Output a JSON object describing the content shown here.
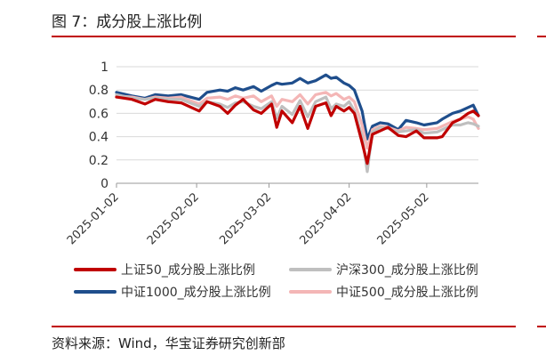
{
  "figure": {
    "title": "图 7：成分股上涨比例",
    "source": "资料来源：Wind，华宝证券研究创新部"
  },
  "colors": {
    "rule": "#c00000",
    "sz50": "#c00000",
    "hs300": "#bfbfbf",
    "zz1000": "#1f4e8c",
    "zz500": "#f4b6b6"
  },
  "chart_data": {
    "type": "line",
    "title": "",
    "xlabel": "",
    "ylabel": "",
    "ylim": [
      0,
      1
    ],
    "yticks": [
      0,
      0.2,
      0.4,
      0.6,
      0.8,
      1
    ],
    "ytick_labels": [
      "0",
      "0.2",
      "0.4",
      "0.6",
      "0.8",
      "1"
    ],
    "xlim": [
      "2025-01-02",
      "2025-05-22"
    ],
    "xticks": [
      "2025-01-02",
      "2025-02-02",
      "2025-03-02",
      "2025-04-02",
      "2025-05-02"
    ],
    "grid": "horizontal",
    "legend_position": "bottom",
    "series": [
      {
        "key": "sz50",
        "name": "上证50_成分股上涨比例",
        "points": [
          [
            "2025-01-02",
            0.74
          ],
          [
            "2025-01-08",
            0.72
          ],
          [
            "2025-01-13",
            0.68
          ],
          [
            "2025-01-17",
            0.72
          ],
          [
            "2025-01-22",
            0.7
          ],
          [
            "2025-01-27",
            0.69
          ],
          [
            "2025-02-03",
            0.62
          ],
          [
            "2025-02-06",
            0.7
          ],
          [
            "2025-02-11",
            0.66
          ],
          [
            "2025-02-14",
            0.6
          ],
          [
            "2025-02-17",
            0.67
          ],
          [
            "2025-02-20",
            0.72
          ],
          [
            "2025-02-24",
            0.63
          ],
          [
            "2025-02-27",
            0.6
          ],
          [
            "2025-03-03",
            0.68
          ],
          [
            "2025-03-05",
            0.48
          ],
          [
            "2025-03-07",
            0.62
          ],
          [
            "2025-03-11",
            0.52
          ],
          [
            "2025-03-14",
            0.66
          ],
          [
            "2025-03-17",
            0.47
          ],
          [
            "2025-03-20",
            0.66
          ],
          [
            "2025-03-24",
            0.69
          ],
          [
            "2025-03-26",
            0.58
          ],
          [
            "2025-03-28",
            0.66
          ],
          [
            "2025-03-31",
            0.62
          ],
          [
            "2025-04-02",
            0.65
          ],
          [
            "2025-04-04",
            0.6
          ],
          [
            "2025-04-07",
            0.35
          ],
          [
            "2025-04-09",
            0.17
          ],
          [
            "2025-04-11",
            0.42
          ],
          [
            "2025-04-14",
            0.45
          ],
          [
            "2025-04-17",
            0.48
          ],
          [
            "2025-04-21",
            0.41
          ],
          [
            "2025-04-24",
            0.4
          ],
          [
            "2025-04-28",
            0.45
          ],
          [
            "2025-05-01",
            0.39
          ],
          [
            "2025-05-06",
            0.39
          ],
          [
            "2025-05-08",
            0.4
          ],
          [
            "2025-05-12",
            0.52
          ],
          [
            "2025-05-15",
            0.55
          ],
          [
            "2025-05-18",
            0.6
          ],
          [
            "2025-05-20",
            0.62
          ],
          [
            "2025-05-22",
            0.58
          ]
        ]
      },
      {
        "key": "hs300",
        "name": "沪深300_成分股上涨比例",
        "points": [
          [
            "2025-01-02",
            0.76
          ],
          [
            "2025-01-08",
            0.73
          ],
          [
            "2025-01-13",
            0.72
          ],
          [
            "2025-01-17",
            0.73
          ],
          [
            "2025-01-22",
            0.72
          ],
          [
            "2025-01-27",
            0.72
          ],
          [
            "2025-02-03",
            0.66
          ],
          [
            "2025-02-06",
            0.7
          ],
          [
            "2025-02-11",
            0.68
          ],
          [
            "2025-02-14",
            0.65
          ],
          [
            "2025-02-17",
            0.69
          ],
          [
            "2025-02-20",
            0.7
          ],
          [
            "2025-02-24",
            0.66
          ],
          [
            "2025-02-27",
            0.64
          ],
          [
            "2025-03-03",
            0.7
          ],
          [
            "2025-03-05",
            0.56
          ],
          [
            "2025-03-07",
            0.66
          ],
          [
            "2025-03-11",
            0.59
          ],
          [
            "2025-03-14",
            0.71
          ],
          [
            "2025-03-17",
            0.57
          ],
          [
            "2025-03-20",
            0.7
          ],
          [
            "2025-03-24",
            0.74
          ],
          [
            "2025-03-26",
            0.64
          ],
          [
            "2025-03-28",
            0.68
          ],
          [
            "2025-03-31",
            0.66
          ],
          [
            "2025-04-02",
            0.7
          ],
          [
            "2025-04-04",
            0.62
          ],
          [
            "2025-04-07",
            0.4
          ],
          [
            "2025-04-09",
            0.1
          ],
          [
            "2025-04-11",
            0.44
          ],
          [
            "2025-04-14",
            0.48
          ],
          [
            "2025-04-17",
            0.47
          ],
          [
            "2025-04-21",
            0.44
          ],
          [
            "2025-04-24",
            0.45
          ],
          [
            "2025-04-28",
            0.46
          ],
          [
            "2025-05-01",
            0.43
          ],
          [
            "2025-05-06",
            0.44
          ],
          [
            "2025-05-08",
            0.46
          ],
          [
            "2025-05-12",
            0.5
          ],
          [
            "2025-05-15",
            0.5
          ],
          [
            "2025-05-18",
            0.52
          ],
          [
            "2025-05-20",
            0.51
          ],
          [
            "2025-05-22",
            0.49
          ]
        ]
      },
      {
        "key": "zz1000",
        "name": "中证1000_成分股上涨比例",
        "points": [
          [
            "2025-01-02",
            0.78
          ],
          [
            "2025-01-08",
            0.75
          ],
          [
            "2025-01-13",
            0.73
          ],
          [
            "2025-01-17",
            0.76
          ],
          [
            "2025-01-22",
            0.75
          ],
          [
            "2025-01-27",
            0.76
          ],
          [
            "2025-02-03",
            0.72
          ],
          [
            "2025-02-06",
            0.78
          ],
          [
            "2025-02-11",
            0.8
          ],
          [
            "2025-02-14",
            0.79
          ],
          [
            "2025-02-17",
            0.82
          ],
          [
            "2025-02-20",
            0.8
          ],
          [
            "2025-02-24",
            0.83
          ],
          [
            "2025-02-27",
            0.79
          ],
          [
            "2025-03-03",
            0.84
          ],
          [
            "2025-03-05",
            0.86
          ],
          [
            "2025-03-07",
            0.85
          ],
          [
            "2025-03-11",
            0.86
          ],
          [
            "2025-03-14",
            0.9
          ],
          [
            "2025-03-17",
            0.86
          ],
          [
            "2025-03-20",
            0.88
          ],
          [
            "2025-03-24",
            0.93
          ],
          [
            "2025-03-26",
            0.9
          ],
          [
            "2025-03-28",
            0.91
          ],
          [
            "2025-03-31",
            0.86
          ],
          [
            "2025-04-02",
            0.84
          ],
          [
            "2025-04-04",
            0.8
          ],
          [
            "2025-04-07",
            0.62
          ],
          [
            "2025-04-09",
            0.38
          ],
          [
            "2025-04-11",
            0.49
          ],
          [
            "2025-04-14",
            0.52
          ],
          [
            "2025-04-17",
            0.51
          ],
          [
            "2025-04-21",
            0.46
          ],
          [
            "2025-04-24",
            0.54
          ],
          [
            "2025-04-28",
            0.52
          ],
          [
            "2025-05-01",
            0.5
          ],
          [
            "2025-05-06",
            0.52
          ],
          [
            "2025-05-08",
            0.55
          ],
          [
            "2025-05-12",
            0.6
          ],
          [
            "2025-05-15",
            0.62
          ],
          [
            "2025-05-18",
            0.65
          ],
          [
            "2025-05-20",
            0.67
          ],
          [
            "2025-05-22",
            0.58
          ]
        ]
      },
      {
        "key": "zz500",
        "name": "中证500_成分股上涨比例",
        "points": [
          [
            "2025-01-02",
            0.75
          ],
          [
            "2025-01-08",
            0.74
          ],
          [
            "2025-01-13",
            0.72
          ],
          [
            "2025-01-17",
            0.74
          ],
          [
            "2025-01-22",
            0.73
          ],
          [
            "2025-01-27",
            0.74
          ],
          [
            "2025-02-03",
            0.68
          ],
          [
            "2025-02-06",
            0.73
          ],
          [
            "2025-02-11",
            0.74
          ],
          [
            "2025-02-14",
            0.72
          ],
          [
            "2025-02-17",
            0.75
          ],
          [
            "2025-02-20",
            0.73
          ],
          [
            "2025-02-24",
            0.75
          ],
          [
            "2025-02-27",
            0.7
          ],
          [
            "2025-03-03",
            0.75
          ],
          [
            "2025-03-05",
            0.66
          ],
          [
            "2025-03-07",
            0.72
          ],
          [
            "2025-03-11",
            0.7
          ],
          [
            "2025-03-14",
            0.76
          ],
          [
            "2025-03-17",
            0.68
          ],
          [
            "2025-03-20",
            0.76
          ],
          [
            "2025-03-24",
            0.78
          ],
          [
            "2025-03-26",
            0.75
          ],
          [
            "2025-03-28",
            0.77
          ],
          [
            "2025-03-31",
            0.72
          ],
          [
            "2025-04-02",
            0.74
          ],
          [
            "2025-04-04",
            0.7
          ],
          [
            "2025-04-07",
            0.5
          ],
          [
            "2025-04-09",
            0.3
          ],
          [
            "2025-04-11",
            0.46
          ],
          [
            "2025-04-14",
            0.49
          ],
          [
            "2025-04-17",
            0.48
          ],
          [
            "2025-04-21",
            0.45
          ],
          [
            "2025-04-24",
            0.48
          ],
          [
            "2025-04-28",
            0.47
          ],
          [
            "2025-05-01",
            0.46
          ],
          [
            "2025-05-06",
            0.47
          ],
          [
            "2025-05-08",
            0.49
          ],
          [
            "2025-05-12",
            0.53
          ],
          [
            "2025-05-15",
            0.55
          ],
          [
            "2025-05-18",
            0.57
          ],
          [
            "2025-05-20",
            0.55
          ],
          [
            "2025-05-22",
            0.47
          ]
        ]
      }
    ]
  }
}
